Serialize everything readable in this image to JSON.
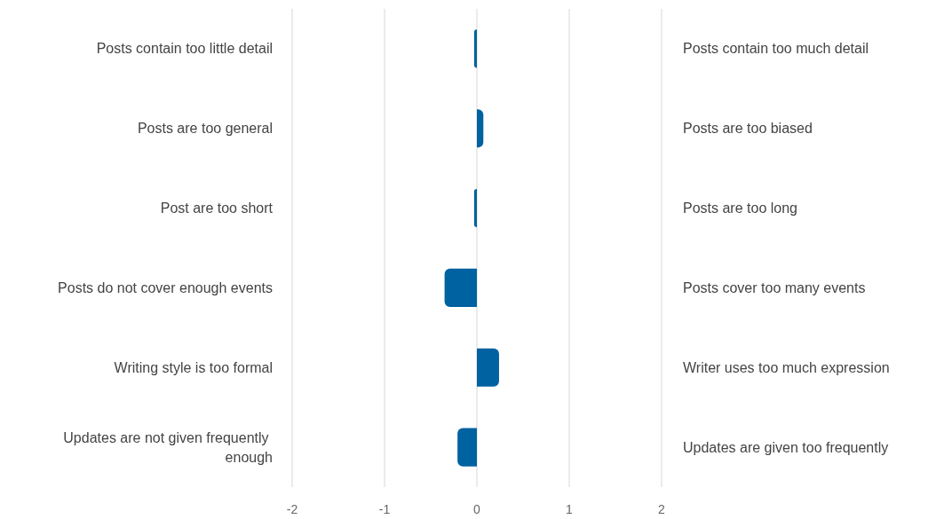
{
  "chart_data": {
    "type": "bar",
    "orientation": "horizontal",
    "categories": [
      "Posts contain too little detail",
      "Posts are too general",
      "Post are too short",
      "Posts do not cover enough events",
      "Writing style is too formal",
      "Updates are not given frequently enough"
    ],
    "y2_categories": [
      "Posts contain too much detail",
      "Posts are too biased",
      "Posts are too long",
      "Posts cover too many events",
      "Writer uses too much expression",
      "Updates are given too frequently"
    ],
    "values": [
      -0.03,
      0.07,
      -0.03,
      -0.35,
      0.24,
      -0.21
    ],
    "color": "#0062a0",
    "xlim": [
      -2,
      2
    ],
    "xticks": [
      -2,
      -1,
      0,
      1,
      2
    ],
    "grid": "x"
  }
}
